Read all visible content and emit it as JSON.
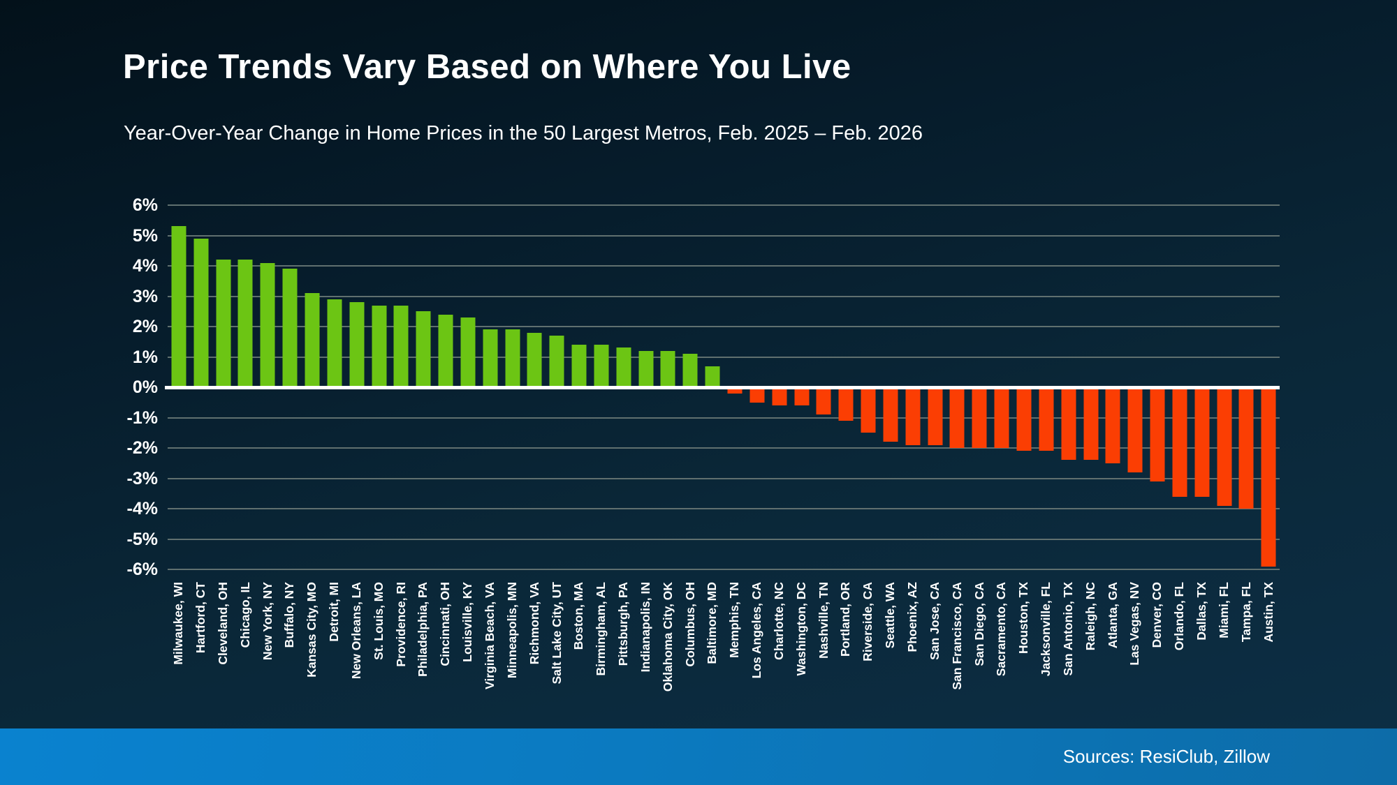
{
  "slide": {
    "title": "Price Trends Vary Based on Where You Live",
    "subtitle": "Year-Over-Year Change in Home Prices in the 50 Largest Metros, Feb. 2025 – Feb. 2026",
    "footer": {
      "source_text": "Sources: ResiClub, Zillow"
    }
  },
  "colors": {
    "positive_bar": "#6cc514",
    "negative_bar": "#fb3e03",
    "gridline": "#60706f",
    "zero_line": "#ffffff",
    "text": "#ffffff",
    "footer_left": "#0a82cf",
    "footer_right": "#0d6ca8",
    "background_top": "#03111a",
    "background_bottom": "#0d2f46"
  },
  "chart_data": {
    "type": "bar",
    "title": "Price Trends Vary Based on Where You Live",
    "subtitle": "Year-Over-Year Change in Home Prices in the 50 Largest Metros, Feb. 2025 – Feb. 2026",
    "xlabel": "",
    "ylabel": "",
    "y_unit": "%",
    "ylim": [
      -6,
      6
    ],
    "y_tick_labels": [
      "6%",
      "5%",
      "4%",
      "3%",
      "2%",
      "1%",
      "0%",
      "-1%",
      "-2%",
      "-3%",
      "-4%",
      "-5%",
      "-6%"
    ],
    "grid": true,
    "legend": false,
    "categories": [
      "Milwaukee, WI",
      "Hartford, CT",
      "Cleveland, OH",
      "Chicago, IL",
      "New York, NY",
      "Buffalo, NY",
      "Kansas City, MO",
      "Detroit, MI",
      "New Orleans, LA",
      "St. Louis, MO",
      "Providence, RI",
      "Philadelphia, PA",
      "Cincinnati, OH",
      "Louisville, KY",
      "Virginia Beach, VA",
      "Minneapolis, MN",
      "Richmond, VA",
      "Salt Lake City, UT",
      "Boston, MA",
      "Birmingham, AL",
      "Pittsburgh, PA",
      "Indianapolis, IN",
      "Oklahoma City, OK",
      "Columbus, OH",
      "Baltimore, MD",
      "Memphis, TN",
      "Los Angeles, CA",
      "Charlotte, NC",
      "Washington, DC",
      "Nashville, TN",
      "Portland, OR",
      "Riverside, CA",
      "Seattle, WA",
      "Phoenix, AZ",
      "San Jose, CA",
      "San Francisco, CA",
      "San Diego, CA",
      "Sacramento, CA",
      "Houston, TX",
      "Jacksonville, FL",
      "San Antonio, TX",
      "Raleigh, NC",
      "Atlanta, GA",
      "Las Vegas, NV",
      "Denver, CO",
      "Orlando, FL",
      "Dallas, TX",
      "Miami, FL",
      "Tampa, FL",
      "Austin, TX"
    ],
    "values": [
      5.3,
      4.9,
      4.2,
      4.2,
      4.1,
      3.9,
      3.1,
      2.9,
      2.8,
      2.7,
      2.7,
      2.5,
      2.4,
      2.3,
      1.9,
      1.9,
      1.8,
      1.7,
      1.4,
      1.4,
      1.3,
      1.2,
      1.2,
      1.1,
      0.7,
      -0.2,
      -0.5,
      -0.6,
      -0.6,
      -0.9,
      -1.1,
      -1.5,
      -1.8,
      -1.9,
      -1.9,
      -2.0,
      -2.0,
      -2.0,
      -2.1,
      -2.1,
      -2.4,
      -2.4,
      -2.5,
      -2.8,
      -3.1,
      -3.6,
      -3.6,
      -3.9,
      -4.0,
      -5.9
    ]
  }
}
